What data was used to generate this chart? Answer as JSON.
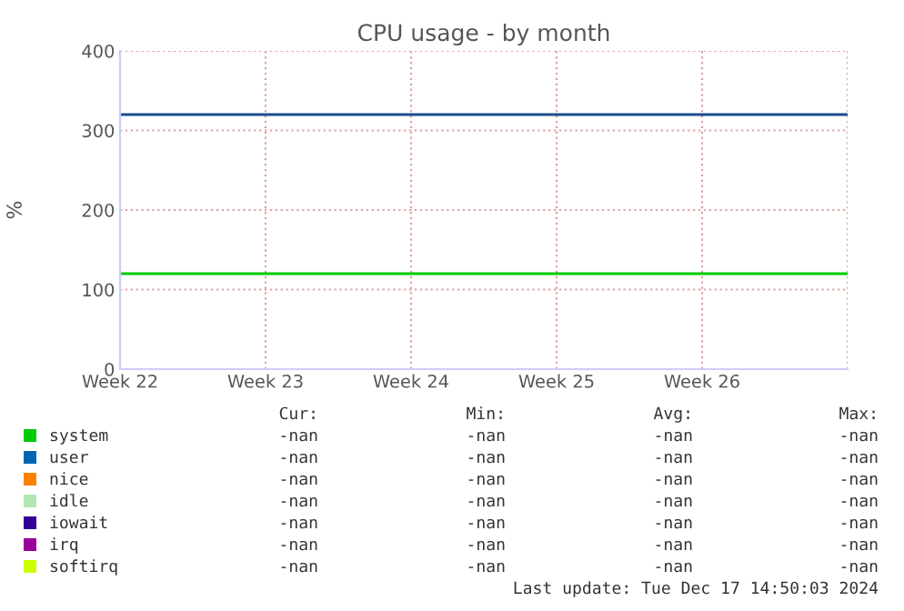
{
  "chart_data": {
    "type": "line",
    "title": "CPU usage - by month",
    "ylabel": "%",
    "categories": [
      "Week 22",
      "Week 23",
      "Week 24",
      "Week 25",
      "Week 26",
      null
    ],
    "ylim": [
      0,
      400
    ],
    "yticks": [
      0,
      100,
      200,
      300,
      400
    ],
    "grid": true,
    "legend": "bottom",
    "series": [
      {
        "color": "#1a4f8a",
        "values": [
          320,
          320,
          320,
          320,
          320,
          320
        ]
      },
      {
        "color": "#00cc00",
        "values": [
          120,
          120,
          120,
          120,
          120,
          120
        ]
      },
      {
        "name": "system",
        "color": "#00cc00",
        "values": [
          null,
          null,
          null,
          null,
          null,
          null
        ],
        "value_labels": [
          "-nan",
          "-nan",
          "-nan",
          "-nan",
          null,
          null
        ]
      },
      {
        "name": "user",
        "color": "#0066b3",
        "values": [
          null,
          null,
          null,
          null,
          null,
          null
        ],
        "value_labels": [
          "-nan",
          "-nan",
          "-nan",
          "-nan",
          null,
          null
        ]
      },
      {
        "name": "nice",
        "color": "#ff8000",
        "values": [
          null,
          null,
          null,
          null,
          null,
          null
        ],
        "value_labels": [
          "-nan",
          "-nan",
          "-nan",
          "-nan",
          null,
          null
        ]
      },
      {
        "name": "idle",
        "color": "#b3e6b3",
        "values": [
          null,
          null,
          null,
          null,
          null,
          null
        ],
        "value_labels": [
          "-nan",
          "-nan",
          "-nan",
          "-nan",
          null,
          null
        ]
      },
      {
        "name": "iowait",
        "color": "#330099",
        "values": [
          null,
          null,
          null,
          null,
          null,
          null
        ],
        "value_labels": [
          "-nan",
          "-nan",
          "-nan",
          "-nan",
          null,
          null
        ]
      },
      {
        "name": "irq",
        "color": "#990099",
        "values": [
          null,
          null,
          null,
          null,
          null,
          null
        ],
        "value_labels": [
          "-nan",
          "-nan",
          "-nan",
          "-nan",
          null,
          null
        ]
      },
      {
        "name": "softirq",
        "color": "#ccff00",
        "values": [
          null,
          null,
          null,
          null,
          null,
          null
        ],
        "value_labels": [
          "-nan",
          "-nan",
          "-nan",
          "-nan",
          null,
          null
        ]
      }
    ],
    "annotations": [
      "Cur:",
      "Min:",
      "Avg:",
      "Max:",
      "Last update: Tue Dec 17 14:50:03 2024"
    ]
  }
}
